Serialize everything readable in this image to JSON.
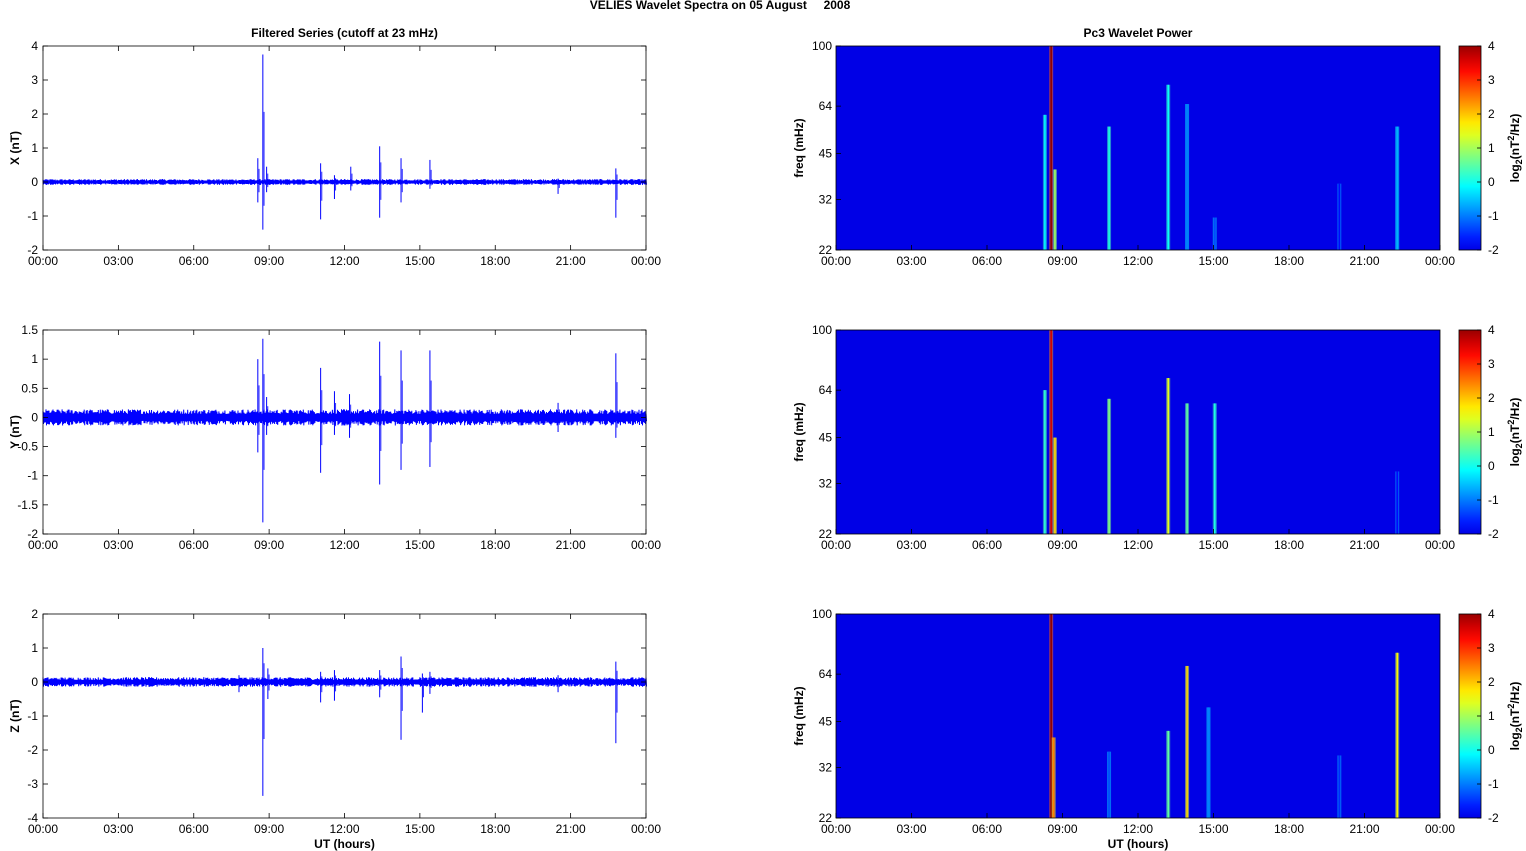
{
  "figure": {
    "title": "VELIES Wavelet Spectra on 05 August     2008"
  },
  "chart_data": [
    {
      "type": "line",
      "panel": "X",
      "title": "Filtered Series (cutoff at 23 mHz)",
      "xlabel": "",
      "ylabel": "X (nT)",
      "xlim": [
        "00:00",
        "24:00"
      ],
      "xticks": [
        "00:00",
        "03:00",
        "06:00",
        "09:00",
        "12:00",
        "15:00",
        "18:00",
        "21:00",
        "00:00"
      ],
      "ylim": [
        -2,
        4
      ],
      "yticks": [
        "-2",
        "-1",
        "0",
        "1",
        "2",
        "3",
        "4"
      ],
      "line_color": "#0000ff",
      "noise_amplitude": 0.06,
      "spikes": [
        {
          "t": 8.55,
          "min": -0.6,
          "max": 0.7
        },
        {
          "t": 8.75,
          "min": -1.4,
          "max": 3.75
        },
        {
          "t": 8.9,
          "min": -0.3,
          "max": 0.45
        },
        {
          "t": 11.05,
          "min": -1.1,
          "max": 0.55
        },
        {
          "t": 11.6,
          "min": -0.5,
          "max": 0.2
        },
        {
          "t": 12.25,
          "min": -0.25,
          "max": 0.45
        },
        {
          "t": 13.4,
          "min": -1.05,
          "max": 1.05
        },
        {
          "t": 14.25,
          "min": -0.6,
          "max": 0.7
        },
        {
          "t": 15.4,
          "min": -0.2,
          "max": 0.65
        },
        {
          "t": 20.5,
          "min": -0.35,
          "max": 0.1
        },
        {
          "t": 22.8,
          "min": -1.05,
          "max": 0.4
        }
      ]
    },
    {
      "type": "line",
      "panel": "Y",
      "title": "",
      "xlabel": "",
      "ylabel": "Y (nT)",
      "xlim": [
        "00:00",
        "24:00"
      ],
      "xticks": [
        "00:00",
        "03:00",
        "06:00",
        "09:00",
        "12:00",
        "15:00",
        "18:00",
        "21:00",
        "00:00"
      ],
      "ylim": [
        -2,
        1.5
      ],
      "yticks": [
        "-2",
        "-1.5",
        "-1",
        "-0.5",
        "0",
        "0.5",
        "1",
        "1.5"
      ],
      "line_color": "#0000ff",
      "noise_amplitude": 0.1,
      "spikes": [
        {
          "t": 8.55,
          "min": -0.6,
          "max": 1.0
        },
        {
          "t": 8.75,
          "min": -1.8,
          "max": 1.35
        },
        {
          "t": 8.9,
          "min": -0.3,
          "max": 0.35
        },
        {
          "t": 11.05,
          "min": -0.95,
          "max": 0.85
        },
        {
          "t": 11.6,
          "min": -0.3,
          "max": 0.45
        },
        {
          "t": 12.2,
          "min": -0.35,
          "max": 0.4
        },
        {
          "t": 13.4,
          "min": -1.15,
          "max": 1.3
        },
        {
          "t": 14.25,
          "min": -0.9,
          "max": 1.15
        },
        {
          "t": 15.4,
          "min": -0.85,
          "max": 1.15
        },
        {
          "t": 20.5,
          "min": -0.25,
          "max": 0.25
        },
        {
          "t": 22.8,
          "min": -0.35,
          "max": 1.1
        }
      ]
    },
    {
      "type": "line",
      "panel": "Z",
      "title": "",
      "xlabel": "UT (hours)",
      "ylabel": "Z (nT)",
      "xlim": [
        "00:00",
        "24:00"
      ],
      "xticks": [
        "00:00",
        "03:00",
        "06:00",
        "09:00",
        "12:00",
        "15:00",
        "18:00",
        "21:00",
        "00:00"
      ],
      "ylim": [
        -4,
        2
      ],
      "yticks": [
        "-4",
        "-3",
        "-2",
        "-1",
        "0",
        "1",
        "2"
      ],
      "line_color": "#0000ff",
      "noise_amplitude": 0.1,
      "spikes": [
        {
          "t": 7.8,
          "min": -0.3,
          "max": 0.2
        },
        {
          "t": 8.75,
          "min": -3.35,
          "max": 1.0
        },
        {
          "t": 8.95,
          "min": -0.5,
          "max": 0.4
        },
        {
          "t": 11.05,
          "min": -0.6,
          "max": 0.3
        },
        {
          "t": 11.6,
          "min": -0.55,
          "max": 0.35
        },
        {
          "t": 13.4,
          "min": -0.45,
          "max": 0.35
        },
        {
          "t": 14.25,
          "min": -1.7,
          "max": 0.75
        },
        {
          "t": 15.1,
          "min": -0.9,
          "max": 0.25
        },
        {
          "t": 15.4,
          "min": -0.35,
          "max": 0.3
        },
        {
          "t": 20.5,
          "min": -0.3,
          "max": 0.2
        },
        {
          "t": 22.8,
          "min": -1.8,
          "max": 0.6
        }
      ]
    },
    {
      "type": "heatmap",
      "panel": "X",
      "title": "Pc3 Wavelet Power",
      "xlabel": "",
      "ylabel": "freq (mHz)",
      "xticks": [
        "00:00",
        "03:00",
        "06:00",
        "09:00",
        "12:00",
        "15:00",
        "18:00",
        "21:00",
        "00:00"
      ],
      "yticks": [
        "22",
        "32",
        "45",
        "64",
        "100"
      ],
      "ylim": [
        22,
        100
      ],
      "yscale": "log",
      "colorbar_label": "log2(nT^2/Hz)",
      "colorbar_label_parts": {
        "a": "log",
        "b": "2",
        "c": "(nT",
        "d": "2",
        "e": "/Hz)"
      },
      "clim": [
        -2,
        4
      ],
      "colorbar_ticks": [
        "-2",
        "-1",
        "0",
        "1",
        "2",
        "3",
        "4"
      ],
      "colormap": "jet",
      "background_level": -2,
      "streaks": [
        {
          "t": 8.3,
          "top": 60,
          "level": 0.2
        },
        {
          "t": 8.55,
          "top": 100,
          "level": 3.9
        },
        {
          "t": 8.7,
          "top": 40,
          "level": 1.2
        },
        {
          "t": 10.85,
          "top": 55,
          "level": 0.4
        },
        {
          "t": 13.2,
          "top": 75,
          "level": 0.3
        },
        {
          "t": 13.95,
          "top": 65,
          "level": -0.5
        },
        {
          "t": 15.05,
          "top": 28,
          "level": -0.8
        },
        {
          "t": 20.0,
          "top": 36,
          "level": -1.2
        },
        {
          "t": 22.3,
          "top": 55,
          "level": -0.2
        }
      ]
    },
    {
      "type": "heatmap",
      "panel": "Y",
      "title": "",
      "xlabel": "",
      "ylabel": "freq (mHz)",
      "xticks": [
        "00:00",
        "03:00",
        "06:00",
        "09:00",
        "12:00",
        "15:00",
        "18:00",
        "21:00",
        "00:00"
      ],
      "yticks": [
        "22",
        "32",
        "45",
        "64",
        "100"
      ],
      "ylim": [
        22,
        100
      ],
      "yscale": "log",
      "colorbar_label": "log2(nT^2/Hz)",
      "colorbar_label_parts": {
        "a": "log",
        "b": "2",
        "c": "(nT",
        "d": "2",
        "e": "/Hz)"
      },
      "clim": [
        -2,
        4
      ],
      "colorbar_ticks": [
        "-2",
        "-1",
        "0",
        "1",
        "2",
        "3",
        "4"
      ],
      "colormap": "jet",
      "background_level": -2,
      "streaks": [
        {
          "t": 8.3,
          "top": 64,
          "level": 0.5
        },
        {
          "t": 8.55,
          "top": 100,
          "level": 3.5
        },
        {
          "t": 8.7,
          "top": 45,
          "level": 2.0
        },
        {
          "t": 10.85,
          "top": 60,
          "level": 1.0
        },
        {
          "t": 13.2,
          "top": 70,
          "level": 1.6
        },
        {
          "t": 13.95,
          "top": 58,
          "level": 0.8
        },
        {
          "t": 15.05,
          "top": 58,
          "level": 0.4
        },
        {
          "t": 22.3,
          "top": 35,
          "level": -1.2
        }
      ]
    },
    {
      "type": "heatmap",
      "panel": "Z",
      "title": "",
      "xlabel": "UT (hours)",
      "ylabel": "freq (mHz)",
      "xticks": [
        "00:00",
        "03:00",
        "06:00",
        "09:00",
        "12:00",
        "15:00",
        "18:00",
        "21:00",
        "00:00"
      ],
      "yticks": [
        "22",
        "32",
        "45",
        "64",
        "100"
      ],
      "ylim": [
        22,
        100
      ],
      "yscale": "log",
      "colorbar_label": "log2(nT^2/Hz)",
      "colorbar_label_parts": {
        "a": "log",
        "b": "2",
        "c": "(nT",
        "d": "2",
        "e": "/Hz)"
      },
      "clim": [
        -2,
        4
      ],
      "colorbar_ticks": [
        "-2",
        "-1",
        "0",
        "1",
        "2",
        "3",
        "4"
      ],
      "colormap": "jet",
      "background_level": -2,
      "streaks": [
        {
          "t": 8.55,
          "top": 100,
          "level": 3.9
        },
        {
          "t": 8.65,
          "top": 40,
          "level": 2.5
        },
        {
          "t": 10.85,
          "top": 36,
          "level": -0.8
        },
        {
          "t": 13.2,
          "top": 42,
          "level": 0.8
        },
        {
          "t": 13.95,
          "top": 68,
          "level": 2.0
        },
        {
          "t": 14.8,
          "top": 50,
          "level": -0.5
        },
        {
          "t": 20.0,
          "top": 35,
          "level": -1.0
        },
        {
          "t": 22.3,
          "top": 75,
          "level": 1.8
        }
      ]
    }
  ]
}
